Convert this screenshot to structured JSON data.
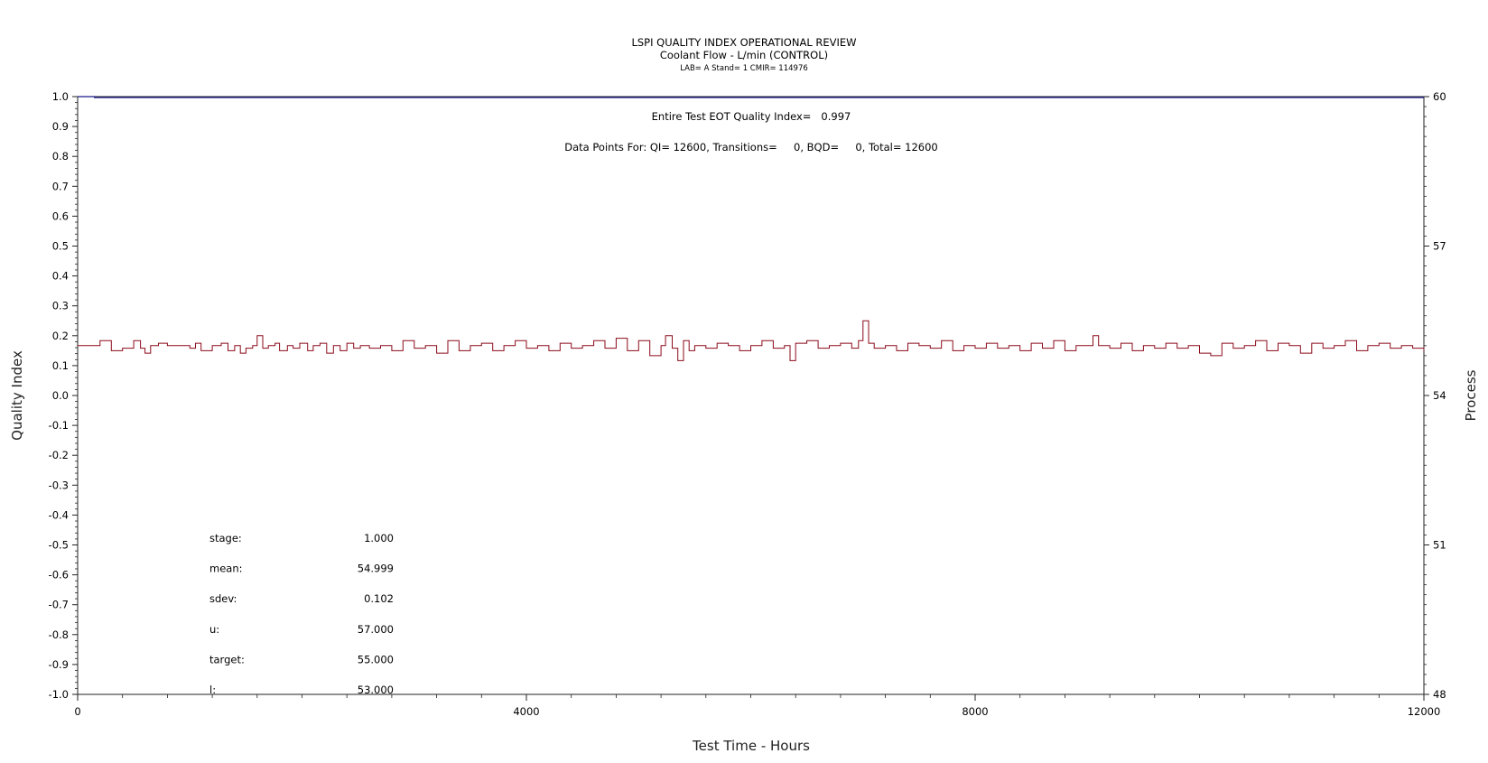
{
  "chart_data": {
    "type": "line",
    "title": "LSPI QUALITY INDEX OPERATIONAL REVIEW",
    "subtitle": "Coolant Flow - L/min (CONTROL)",
    "subtitle2": "LAB= A Stand= 1 CMIR= 114976",
    "xlabel": "Test Time - Hours",
    "ylabel": "Quality Index",
    "y2label": "Process",
    "xlim": [
      0,
      12000
    ],
    "ylim": [
      -1.0,
      1.0
    ],
    "y2lim": [
      48,
      60
    ],
    "x_ticks": [
      "0",
      "4000",
      "8000",
      "12000"
    ],
    "x_tick_values": [
      0,
      4000,
      8000,
      12000
    ],
    "y_ticks": [
      "1.0",
      "0.9",
      "0.8",
      "0.7",
      "0.6",
      "0.5",
      "0.4",
      "0.3",
      "0.2",
      "0.1",
      "0.0",
      "-0.1",
      "-0.2",
      "-0.3",
      "-0.4",
      "-0.5",
      "-0.6",
      "-0.7",
      "-0.8",
      "-0.9",
      "-1.0"
    ],
    "y_tick_values": [
      1.0,
      0.9,
      0.8,
      0.7,
      0.6,
      0.5,
      0.4,
      0.3,
      0.2,
      0.1,
      0.0,
      -0.1,
      -0.2,
      -0.3,
      -0.4,
      -0.5,
      -0.6,
      -0.7,
      -0.8,
      -0.9,
      -1.0
    ],
    "y2_ticks": [
      "60",
      "57",
      "54",
      "51",
      "48"
    ],
    "y2_tick_values": [
      60,
      57,
      54,
      51,
      48
    ],
    "annotations": {
      "eot": "Entire Test EOT Quality Index=   0.997",
      "points": "Data Points For: QI= 12600, Transitions=     0, BQD=     0, Total= 12600"
    },
    "stats": [
      {
        "label": "stage:",
        "value": "1.000"
      },
      {
        "label": "mean:",
        "value": "54.999"
      },
      {
        "label": "sdev:",
        "value": "0.102"
      },
      {
        "label": "u:",
        "value": "57.000"
      },
      {
        "label": "target:",
        "value": "55.000"
      },
      {
        "label": "l:",
        "value": "53.000"
      }
    ],
    "series": [
      {
        "color": "#1a1a8c",
        "axis": "left",
        "x": [
          0,
          150,
          12000
        ],
        "y": [
          1.0,
          0.997,
          0.997
        ]
      },
      {
        "color": "#8b0a1a",
        "axis": "right",
        "x": [
          0,
          120,
          200,
          300,
          400,
          500,
          560,
          600,
          650,
          720,
          800,
          900,
          1000,
          1050,
          1100,
          1200,
          1280,
          1340,
          1400,
          1450,
          1500,
          1560,
          1600,
          1650,
          1700,
          1760,
          1800,
          1870,
          1920,
          1980,
          2050,
          2100,
          2160,
          2220,
          2280,
          2340,
          2400,
          2460,
          2520,
          2600,
          2700,
          2800,
          2900,
          3000,
          3100,
          3200,
          3300,
          3400,
          3500,
          3600,
          3700,
          3800,
          3900,
          4000,
          4100,
          4200,
          4300,
          4400,
          4500,
          4600,
          4700,
          4800,
          4900,
          5000,
          5100,
          5200,
          5240,
          5300,
          5350,
          5400,
          5450,
          5500,
          5600,
          5700,
          5800,
          5900,
          6000,
          6100,
          6200,
          6300,
          6350,
          6400,
          6500,
          6600,
          6700,
          6800,
          6900,
          6960,
          7000,
          7050,
          7100,
          7200,
          7300,
          7400,
          7500,
          7600,
          7700,
          7800,
          7900,
          8000,
          8100,
          8200,
          8300,
          8400,
          8500,
          8600,
          8700,
          8800,
          8900,
          9000,
          9050,
          9100,
          9200,
          9300,
          9400,
          9500,
          9600,
          9700,
          9800,
          9900,
          10000,
          10100,
          10200,
          10300,
          10400,
          10500,
          10600,
          10700,
          10800,
          10900,
          11000,
          11100,
          11200,
          11300,
          11400,
          11500,
          11600,
          11700,
          11800,
          11900,
          12000
        ],
        "y": [
          55.0,
          55.0,
          55.1,
          54.9,
          54.95,
          55.1,
          54.95,
          54.85,
          55.0,
          55.05,
          55.0,
          55.0,
          54.95,
          55.05,
          54.9,
          55.0,
          55.05,
          54.9,
          55.0,
          54.85,
          54.95,
          55.0,
          55.2,
          54.95,
          55.0,
          55.05,
          54.9,
          55.0,
          54.95,
          55.05,
          54.9,
          55.0,
          55.05,
          54.85,
          55.0,
          54.9,
          55.05,
          54.95,
          55.0,
          54.95,
          55.0,
          54.9,
          55.1,
          54.95,
          55.0,
          54.85,
          55.1,
          54.9,
          55.0,
          55.05,
          54.9,
          55.0,
          55.1,
          54.95,
          55.0,
          54.9,
          55.05,
          54.95,
          55.0,
          55.1,
          54.95,
          55.15,
          54.9,
          55.1,
          54.8,
          55.0,
          55.2,
          54.95,
          54.7,
          55.1,
          54.9,
          55.0,
          54.95,
          55.05,
          55.0,
          54.9,
          55.0,
          55.1,
          54.95,
          55.0,
          54.7,
          55.05,
          55.1,
          54.95,
          55.0,
          55.05,
          54.95,
          55.1,
          55.5,
          55.05,
          54.95,
          55.0,
          54.9,
          55.05,
          55.0,
          54.95,
          55.1,
          54.9,
          55.0,
          54.95,
          55.05,
          54.95,
          55.0,
          54.9,
          55.05,
          54.95,
          55.1,
          54.9,
          55.0,
          55.0,
          55.2,
          55.0,
          54.95,
          55.05,
          54.9,
          55.0,
          54.95,
          55.05,
          54.95,
          55.0,
          54.85,
          54.8,
          55.05,
          54.95,
          55.0,
          55.1,
          54.9,
          55.05,
          55.0,
          54.85,
          55.05,
          54.95,
          55.0,
          55.1,
          54.9,
          55.0,
          55.05,
          54.95,
          55.0,
          54.95,
          54.9
        ]
      }
    ]
  }
}
